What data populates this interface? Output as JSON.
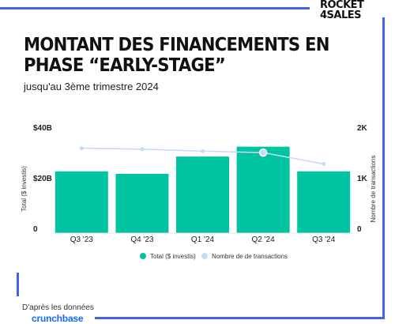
{
  "logo": {
    "line1": "ROCKET",
    "line2": "4SALES"
  },
  "title": "MONTANT DES FINANCEMENTS EN PHASE “EARLY-STAGE”",
  "subtitle": "jusqu'au 3ème trimestre 2024",
  "colors": {
    "bars": "#00c4a1",
    "line": "#c8daf5",
    "frame": "#4361ee",
    "brand": "#146aff"
  },
  "chart_data": {
    "type": "bar",
    "categories": [
      "Q3 '23",
      "Q4 '23",
      "Q1 '24",
      "Q2 '24",
      "Q3 '24"
    ],
    "series": [
      {
        "name": "Total ($ investis)",
        "type": "bar",
        "axis": "left",
        "values": [
          25,
          24,
          31,
          35,
          25
        ]
      },
      {
        "name": "Nombre de de transactions",
        "type": "line",
        "axis": "right",
        "values": [
          1720,
          1700,
          1660,
          1630,
          1400
        ]
      }
    ],
    "left_axis": {
      "label": "Total ($ investis)",
      "ticks": [
        "0",
        "$20B",
        "$40B"
      ],
      "range": [
        0,
        40
      ]
    },
    "right_axis": {
      "label": "Nombre de transactions",
      "ticks": [
        "0",
        "1K",
        "2K"
      ],
      "range": [
        0,
        2000
      ]
    },
    "highlight_index": 3,
    "legend": {
      "position": "bottom-center"
    },
    "grid": false
  },
  "source": {
    "label": "D'après les données",
    "brand": "crunchbase"
  }
}
